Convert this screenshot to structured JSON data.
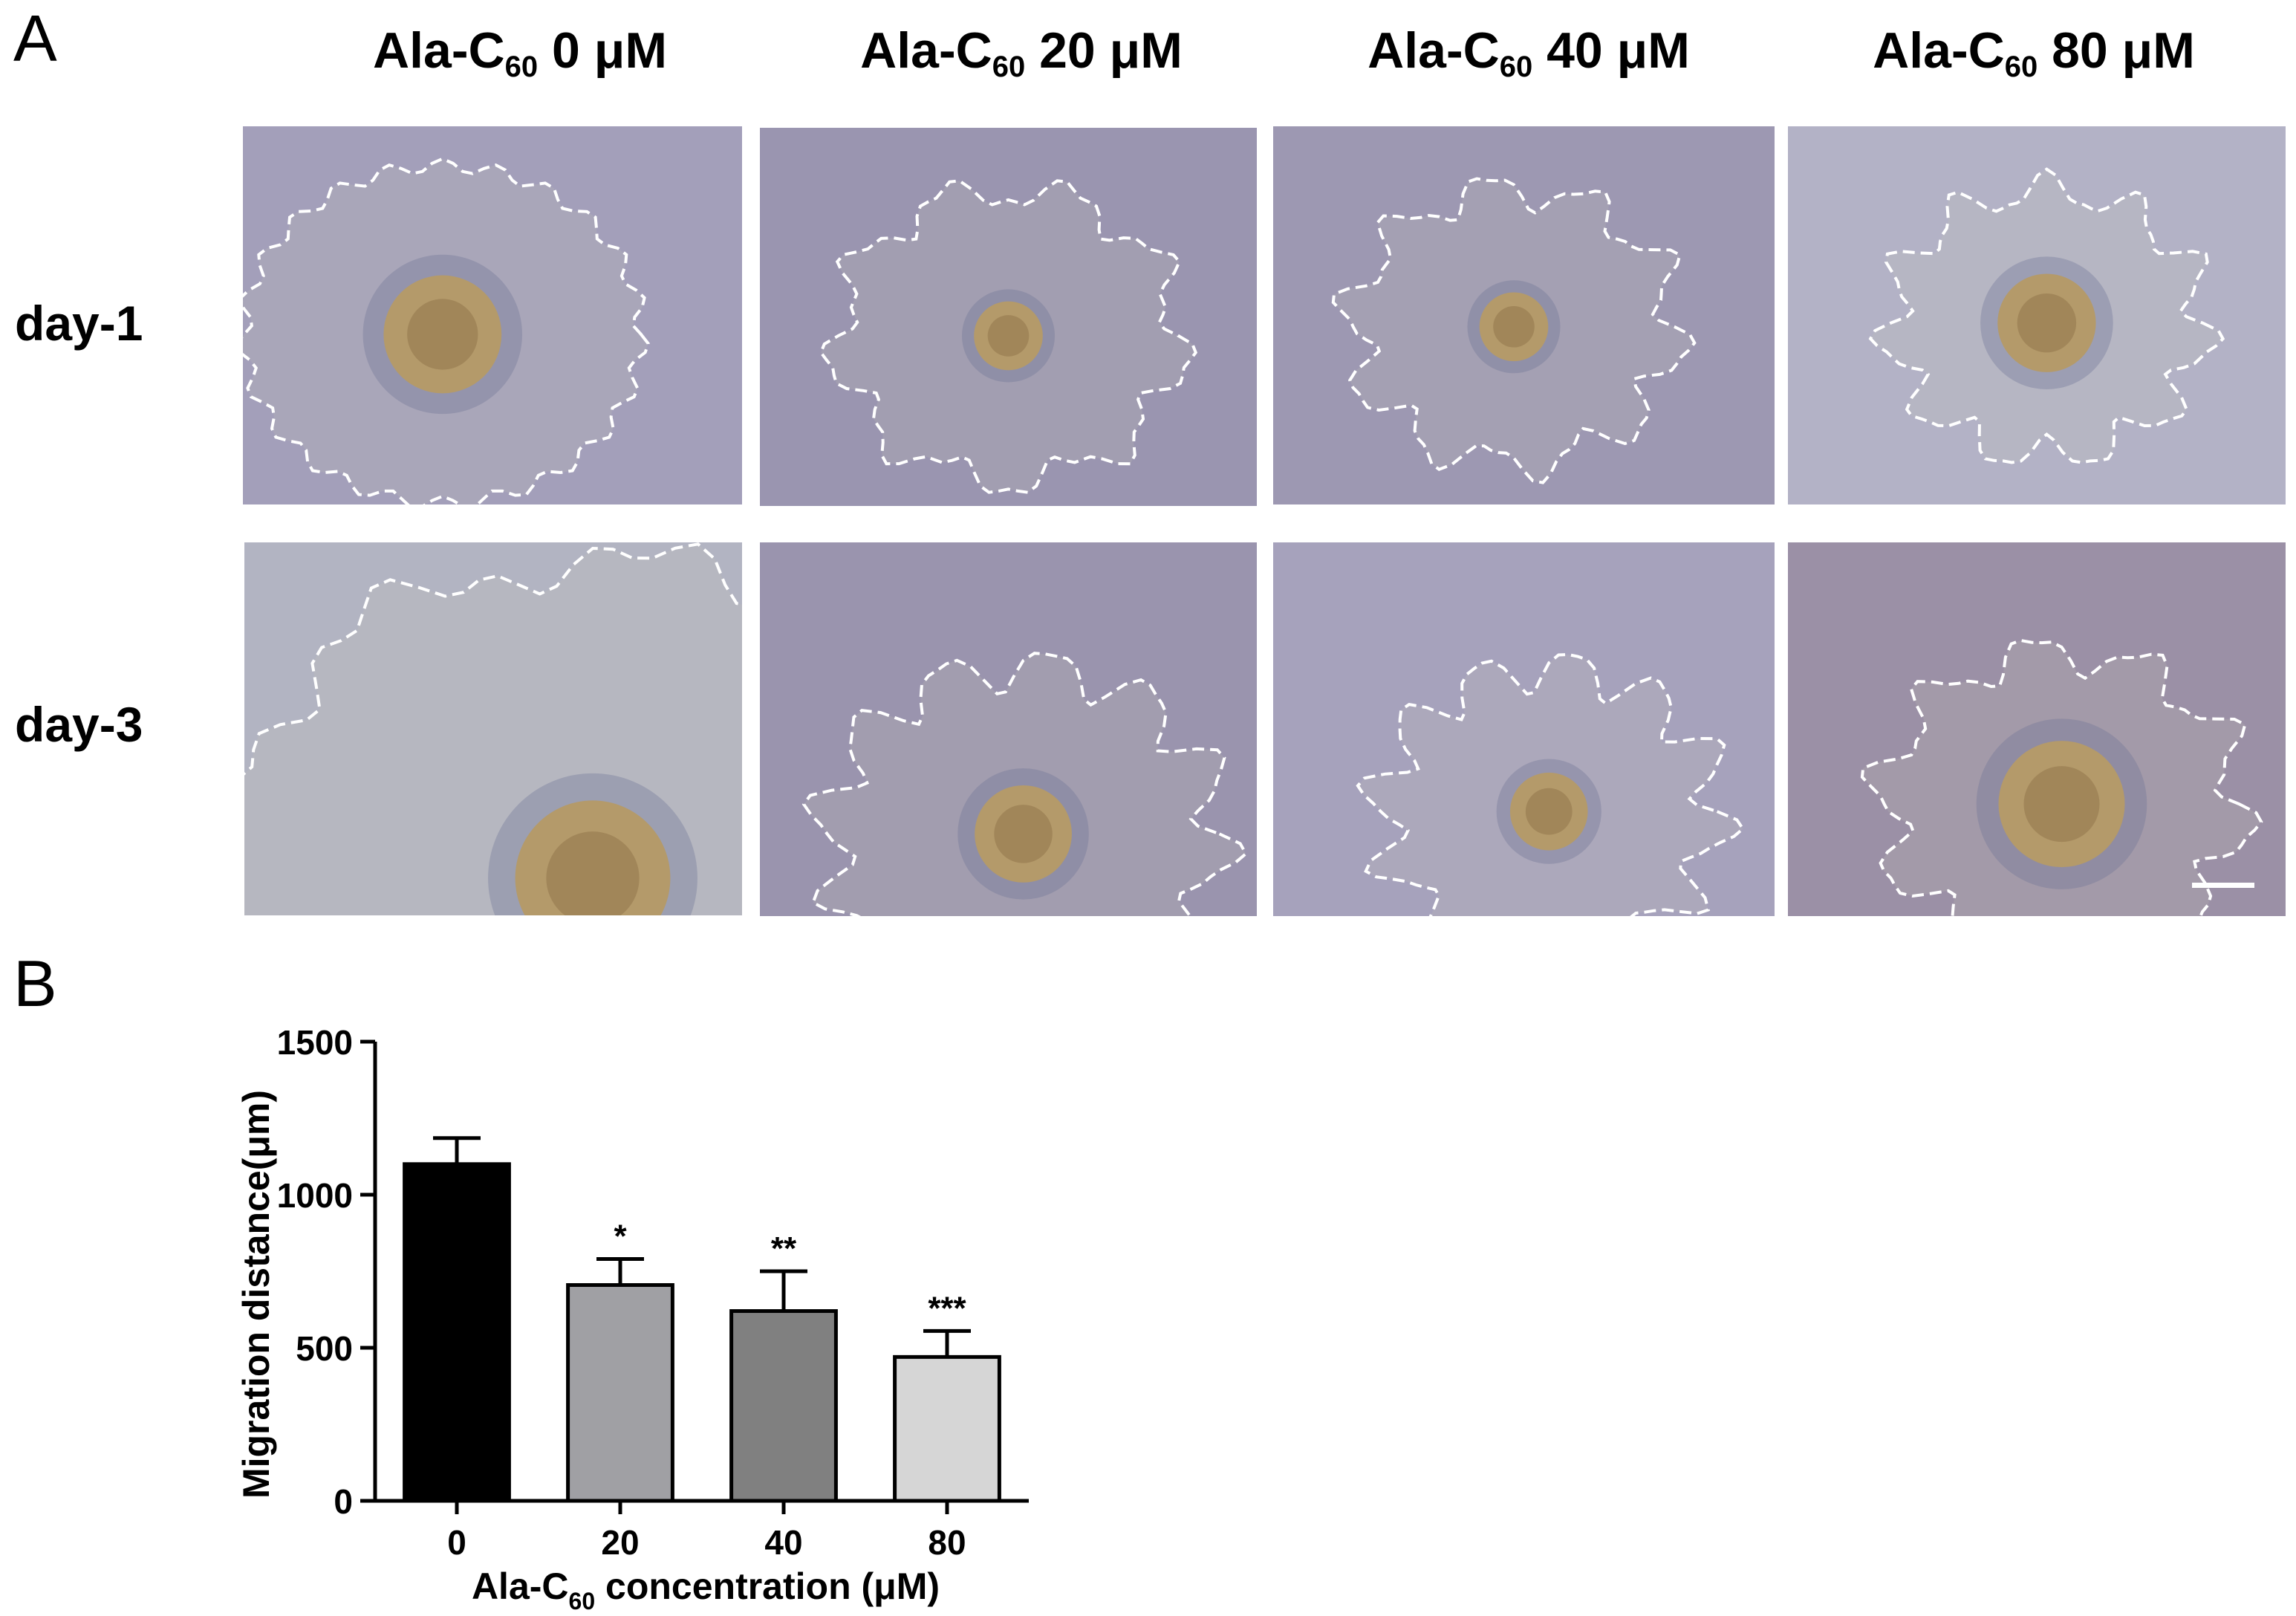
{
  "panel_a": {
    "letter": "A",
    "columns": [
      {
        "prefix": "Ala-C",
        "sub": "60",
        "suffix": " 0 μM"
      },
      {
        "prefix": "Ala-C",
        "sub": "60",
        "suffix": " 20 μM"
      },
      {
        "prefix": "Ala-C",
        "sub": "60",
        "suffix": " 40 μM"
      },
      {
        "prefix": "Ala-C",
        "sub": "60",
        "suffix": " 80 μM"
      }
    ],
    "rows": [
      "day-1",
      "day-3"
    ]
  },
  "panel_b": {
    "letter": "B"
  },
  "chart_data": {
    "type": "bar",
    "categories": [
      "0",
      "20",
      "40",
      "80"
    ],
    "values": [
      1100,
      705,
      620,
      470
    ],
    "errors": [
      85,
      85,
      130,
      85
    ],
    "significance": [
      "",
      "*",
      "**",
      "***"
    ],
    "bar_colors": [
      "#000000",
      "#a0a0a4",
      "#808080",
      "#d6d6d6"
    ],
    "ylabel": "Migration distance(μm)",
    "xlabel": {
      "prefix": "Ala-C",
      "sub": "60",
      "suffix": " concentration (μM)"
    },
    "ylim": [
      0,
      1500
    ],
    "yticks": [
      0,
      500,
      1000,
      1500
    ],
    "grid": false
  }
}
